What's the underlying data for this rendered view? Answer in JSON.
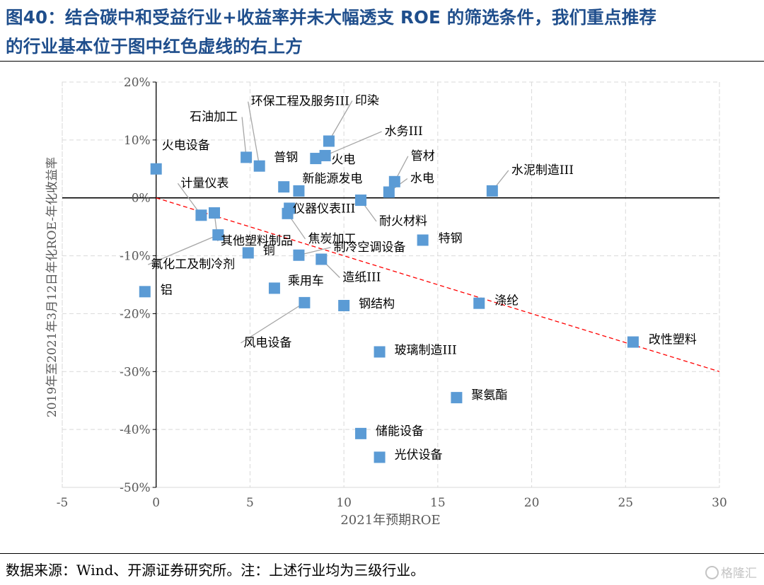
{
  "header": {
    "title_line1": "图40：结合碳中和受益行业+收益率并未大幅透支 ROE 的筛选条件，我们重点推荐",
    "title_line2": "的行业基本位于图中红色虚线的右上方"
  },
  "footer": {
    "source": "数据来源：Wind、开源证券研究所。注：上述行业均为三级行业。",
    "watermark": "格隆汇"
  },
  "colors": {
    "title": "#1f4e8c",
    "points": "#5b9bd5",
    "trendline": "#ff0000",
    "grid": "#d9d9d9"
  },
  "chart_data": {
    "type": "scatter",
    "xlabel": "2021年预期ROE",
    "ylabel": "2019年至2021年3月12日年化ROE-年化收益率",
    "xlim": [
      -5,
      30
    ],
    "ylim": [
      -50,
      20
    ],
    "x_ticks": [
      "-5",
      "0",
      "5",
      "10",
      "15",
      "20",
      "25",
      "30"
    ],
    "y_ticks": [
      "-50%",
      "-40%",
      "-30%",
      "-20%",
      "-10%",
      "0%",
      "10%",
      "20%"
    ],
    "grid": true,
    "trendline": {
      "style": "red dashed",
      "from": [
        0,
        0
      ],
      "to": [
        30,
        -30
      ]
    },
    "points": [
      {
        "label": "火电设备",
        "x": 0.0,
        "y": 5.0
      },
      {
        "label": "石油加工",
        "x": 4.8,
        "y": 7.0
      },
      {
        "label": "环保工程及服务III",
        "x": 5.5,
        "y": 5.5
      },
      {
        "label": "印染",
        "x": 9.2,
        "y": 9.8
      },
      {
        "label": "水务III",
        "x": 9.0,
        "y": 7.3
      },
      {
        "label": "普钢",
        "x": 6.8,
        "y": 1.9
      },
      {
        "label": "火电",
        "x": 8.5,
        "y": 6.8
      },
      {
        "label": "新能源发电",
        "x": 7.6,
        "y": 1.2
      },
      {
        "label": "管材",
        "x": 12.7,
        "y": 2.8
      },
      {
        "label": "水电",
        "x": 12.4,
        "y": 1.0
      },
      {
        "label": "水泥制造III",
        "x": 17.9,
        "y": 1.2
      },
      {
        "label": "耐火材料",
        "x": 10.9,
        "y": -0.4
      },
      {
        "label": "计量仪表",
        "x": 2.4,
        "y": -3.0
      },
      {
        "label": "仪器仪表III",
        "x": 7.1,
        "y": -1.8
      },
      {
        "label": "焦炭加工",
        "x": 7.0,
        "y": -2.7
      },
      {
        "label": "其他塑料制品",
        "x": 3.1,
        "y": -2.6
      },
      {
        "label": "氟化工及制冷剂",
        "x": 3.3,
        "y": -6.4
      },
      {
        "label": "铜",
        "x": 4.9,
        "y": -9.5
      },
      {
        "label": "制冷空调设备",
        "x": 7.6,
        "y": -9.9
      },
      {
        "label": "造纸III",
        "x": 8.8,
        "y": -10.6
      },
      {
        "label": "特钢",
        "x": 14.2,
        "y": -7.3
      },
      {
        "label": "铝",
        "x": -0.6,
        "y": -16.2
      },
      {
        "label": "乘用车",
        "x": 6.3,
        "y": -15.6
      },
      {
        "label": "风电设备",
        "x": 7.9,
        "y": -18.1
      },
      {
        "label": "钢结构",
        "x": 10.0,
        "y": -18.6
      },
      {
        "label": "涤纶",
        "x": 17.2,
        "y": -18.2
      },
      {
        "label": "改性塑料",
        "x": 25.4,
        "y": -24.9
      },
      {
        "label": "玻璃制造III",
        "x": 11.9,
        "y": -26.6
      },
      {
        "label": "聚氨酯",
        "x": 16.0,
        "y": -34.5
      },
      {
        "label": "储能设备",
        "x": 10.9,
        "y": -40.7
      },
      {
        "label": "光伏设备",
        "x": 11.9,
        "y": -44.8
      }
    ]
  }
}
